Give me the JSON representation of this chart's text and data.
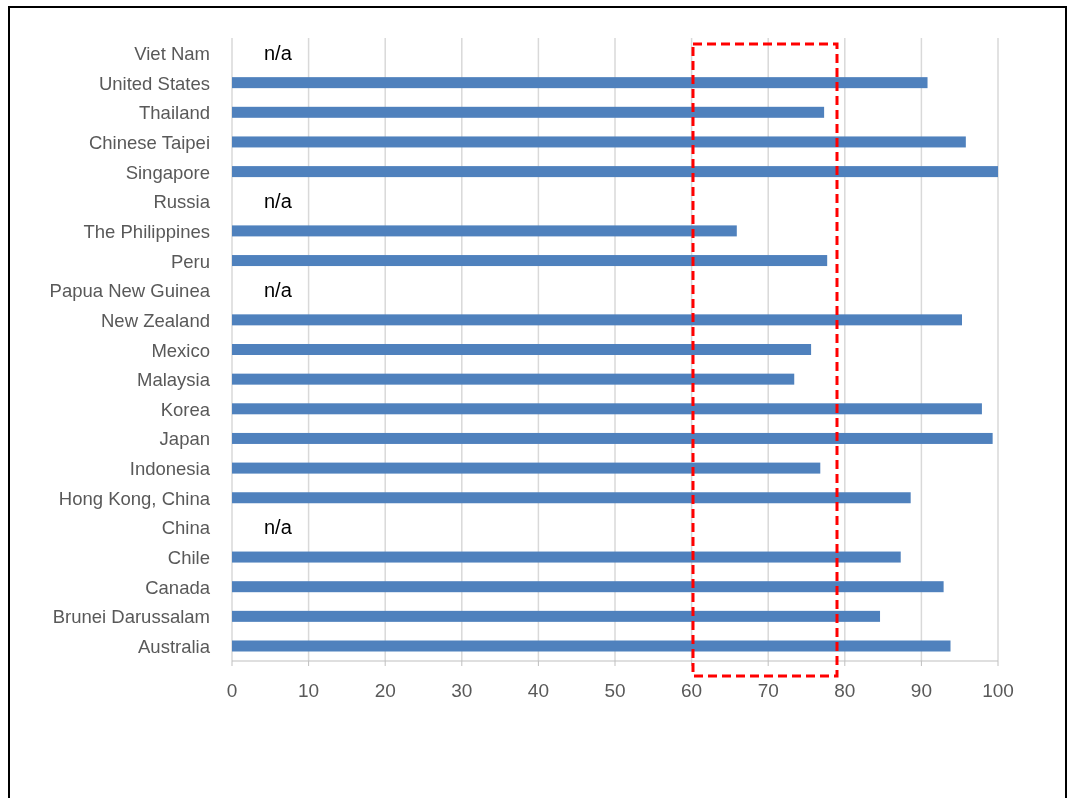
{
  "chart_data": {
    "type": "bar",
    "orientation": "horizontal",
    "categories": [
      "Viet Nam",
      "United States",
      "Thailand",
      "Chinese Taipei",
      "Singapore",
      "Russia",
      "The Philippines",
      "Peru",
      "Papua New Guinea",
      "New Zealand",
      "Mexico",
      "Malaysia",
      "Korea",
      "Japan",
      "Indonesia",
      "Hong Kong, China",
      "China",
      "Chile",
      "Canada",
      "Brunei Darussalam",
      "Australia"
    ],
    "values": [
      null,
      90.8,
      77.3,
      95.8,
      100,
      null,
      65.9,
      77.7,
      null,
      95.3,
      75.6,
      73.4,
      97.9,
      99.3,
      76.8,
      88.6,
      null,
      87.3,
      92.9,
      84.6,
      93.8
    ],
    "value_labels": [
      "n/a",
      null,
      null,
      null,
      null,
      "n/a",
      null,
      null,
      "n/a",
      null,
      null,
      null,
      null,
      null,
      null,
      null,
      "n/a",
      null,
      null,
      null,
      null
    ],
    "color": "#4f81bd",
    "xlim": [
      0,
      100
    ],
    "xticks": [
      0,
      10,
      20,
      30,
      40,
      50,
      60,
      70,
      80,
      90,
      100
    ],
    "grid": "x"
  }
}
